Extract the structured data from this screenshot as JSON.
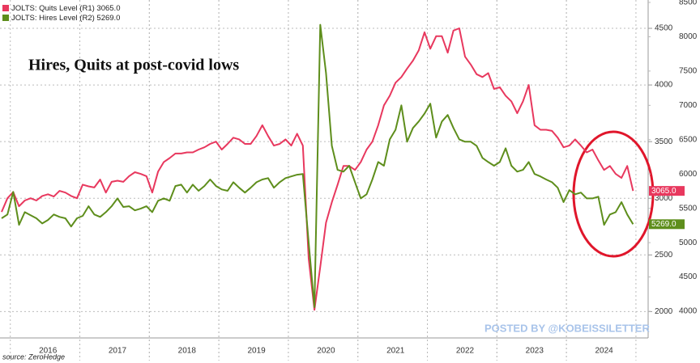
{
  "chart_data": {
    "type": "line",
    "title": "Hires, Quits at post-covid lows",
    "watermark": "POSTED BY @KOBEISSILETTER",
    "source": "source: ZeroHedge",
    "categories": [
      null,
      null,
      null,
      null,
      null,
      null,
      null,
      null,
      "2016",
      null,
      null,
      null,
      null,
      null,
      null,
      null,
      null,
      null,
      null,
      null,
      "2017",
      null,
      null,
      null,
      null,
      null,
      null,
      null,
      null,
      null,
      null,
      null,
      "2018",
      null,
      null,
      null,
      null,
      null,
      null,
      null,
      null,
      null,
      null,
      null,
      "2019",
      null,
      null,
      null,
      null,
      null,
      null,
      null,
      null,
      null,
      null,
      null,
      "2020",
      null,
      null,
      null,
      null,
      null,
      null,
      null,
      null,
      null,
      null,
      null,
      "2021",
      null,
      null,
      null,
      null,
      null,
      null,
      null,
      null,
      null,
      null,
      null,
      "2022",
      null,
      null,
      null,
      null,
      null,
      null,
      null,
      null,
      null,
      null,
      null,
      "2023",
      null,
      null,
      null,
      null,
      null,
      null,
      null,
      null,
      null,
      null,
      null,
      "2024",
      null,
      null,
      null,
      null,
      null
    ],
    "series": [
      {
        "name": "JOLTS: Quits Level (R1)",
        "color": "#e8385e",
        "axis": "y",
        "values": [
          2880,
          3000,
          3055,
          2930,
          2980,
          3000,
          2980,
          3020,
          3035,
          3015,
          3065,
          3050,
          3020,
          3000,
          3120,
          3105,
          3095,
          3165,
          3050,
          3145,
          3155,
          3145,
          3195,
          3230,
          3215,
          3195,
          3050,
          3235,
          3320,
          3355,
          3395,
          3395,
          3405,
          3405,
          3430,
          3450,
          3480,
          3500,
          3430,
          3480,
          3535,
          3520,
          3480,
          3480,
          3550,
          3645,
          3550,
          3465,
          3480,
          3520,
          3465,
          3570,
          3465,
          2465,
          2015,
          2395,
          2785,
          2965,
          3120,
          3285,
          3285,
          3250,
          3320,
          3430,
          3500,
          3645,
          3820,
          3905,
          4020,
          4070,
          4145,
          4215,
          4305,
          4465,
          4320,
          4430,
          4430,
          4285,
          4480,
          4500,
          4250,
          4180,
          4095,
          4070,
          4105,
          3965,
          3980,
          3905,
          3855,
          3750,
          3855,
          4000,
          3645,
          3605,
          3605,
          3595,
          3535,
          3450,
          3465,
          3520,
          3465,
          3405,
          3430,
          3335,
          3250,
          3285,
          3215,
          3180,
          3285,
          3065
        ],
        "value_labels": [
          null,
          null,
          null,
          null,
          null,
          null,
          null,
          null,
          null,
          null,
          null,
          null,
          null,
          null,
          null,
          null,
          null,
          null,
          null,
          null,
          null,
          null,
          null,
          null,
          null,
          null,
          null,
          null,
          null,
          null,
          null,
          null,
          null,
          null,
          null,
          null,
          null,
          null,
          null,
          null,
          null,
          null,
          null,
          null,
          null,
          null,
          null,
          null,
          null,
          null,
          null,
          null,
          null,
          null,
          null,
          null,
          null,
          null,
          null,
          null,
          null,
          null,
          null,
          null,
          null,
          null,
          null,
          null,
          null,
          null,
          null,
          null,
          null,
          null,
          null,
          null,
          null,
          null,
          null,
          null,
          null,
          null,
          null,
          null,
          null,
          null,
          null,
          null,
          null,
          null,
          null,
          null,
          null,
          null,
          null,
          null,
          null,
          null,
          null,
          null,
          null,
          null,
          null,
          null,
          null,
          null,
          null,
          null,
          null,
          "3065.0"
        ]
      },
      {
        "name": "JOLTS: Hires Level (R2)",
        "color": "#5e8e1c",
        "axis": "y2",
        "values": [
          5355,
          5410,
          5740,
          5260,
          5445,
          5400,
          5355,
          5280,
          5330,
          5410,
          5375,
          5355,
          5235,
          5355,
          5390,
          5530,
          5410,
          5375,
          5445,
          5530,
          5645,
          5520,
          5530,
          5470,
          5495,
          5530,
          5445,
          5610,
          5645,
          5610,
          5825,
          5845,
          5730,
          5845,
          5755,
          5825,
          5920,
          5825,
          5775,
          5755,
          5880,
          5800,
          5730,
          5800,
          5880,
          5920,
          5940,
          5800,
          5880,
          5940,
          5965,
          5990,
          6000,
          5000,
          4060,
          8175,
          7470,
          6410,
          6060,
          6035,
          6120,
          5880,
          5645,
          5705,
          5920,
          6175,
          6120,
          6505,
          6645,
          7000,
          6470,
          6670,
          6765,
          6880,
          7025,
          6530,
          6765,
          6860,
          6670,
          6505,
          6470,
          6470,
          6410,
          6235,
          6175,
          6120,
          6175,
          6375,
          6120,
          6035,
          6060,
          6175,
          6000,
          5965,
          5920,
          5880,
          5800,
          5590,
          5765,
          5705,
          5730,
          5645,
          5645,
          5670,
          5260,
          5410,
          5445,
          5590,
          5410,
          5269
        ],
        "value_labels": [
          null,
          null,
          null,
          null,
          null,
          null,
          null,
          null,
          null,
          null,
          null,
          null,
          null,
          null,
          null,
          null,
          null,
          null,
          null,
          null,
          null,
          null,
          null,
          null,
          null,
          null,
          null,
          null,
          null,
          null,
          null,
          null,
          null,
          null,
          null,
          null,
          null,
          null,
          null,
          null,
          null,
          null,
          null,
          null,
          null,
          null,
          null,
          null,
          null,
          null,
          null,
          null,
          null,
          null,
          null,
          null,
          null,
          null,
          null,
          null,
          null,
          null,
          null,
          null,
          null,
          null,
          null,
          null,
          null,
          null,
          null,
          null,
          null,
          null,
          null,
          null,
          null,
          null,
          null,
          null,
          null,
          null,
          null,
          null,
          null,
          null,
          null,
          null,
          null,
          null,
          null,
          null,
          null,
          null,
          null,
          null,
          null,
          null,
          null,
          null,
          null,
          null,
          null,
          null,
          null,
          null,
          null,
          null,
          null,
          "5269.0"
        ]
      }
    ],
    "ylim": [
      1860,
      4750
    ],
    "yticks": [
      2000,
      2500,
      3000,
      3500,
      4000,
      4500
    ],
    "y2lim": [
      3765,
      8535
    ],
    "y2ticks": [
      4000,
      4500,
      5000,
      5500,
      6000,
      6500,
      7000,
      7500,
      8000,
      8500
    ],
    "grid": true
  }
}
